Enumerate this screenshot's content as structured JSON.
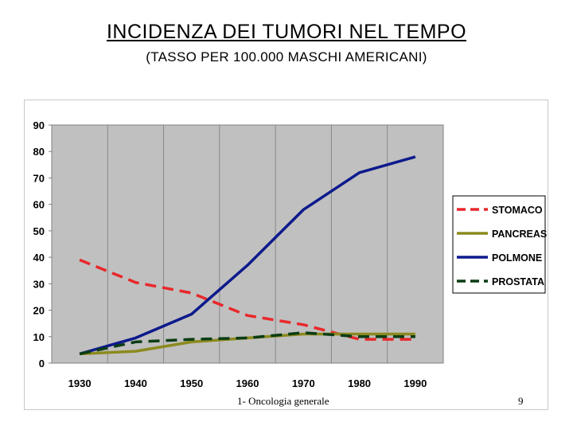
{
  "slide": {
    "title": "INCIDENZA DEI TUMORI NEL TEMPO",
    "subtitle": "(TASSO PER 100.000 MASCHI AMERICANI)",
    "footer_text": "1- Oncologia generale",
    "page_number": "9"
  },
  "chart_data": {
    "type": "line",
    "x": [
      "1930",
      "1940",
      "1950",
      "1960",
      "1970",
      "1980",
      "1990"
    ],
    "ylim": [
      0,
      90
    ],
    "yticks": [
      "0",
      "10",
      "20",
      "30",
      "40",
      "50",
      "60",
      "70",
      "80",
      "90"
    ],
    "grid": true,
    "legend_position": "right",
    "plot_background": "#c0c0c0",
    "series": [
      {
        "name": "STOMACO",
        "color": "#e8282b",
        "dash": "dashed",
        "values": [
          39,
          30.5,
          26.5,
          18,
          14.5,
          9,
          9
        ]
      },
      {
        "name": "PANCREAS",
        "color": "#8c8a1e",
        "dash": "solid",
        "values": [
          3.5,
          4.5,
          8,
          9.5,
          11,
          11,
          11
        ]
      },
      {
        "name": "POLMONE",
        "color": "#0d1a8c",
        "dash": "solid",
        "values": [
          3.5,
          9.5,
          18.5,
          37,
          58,
          72,
          78
        ]
      },
      {
        "name": "PROSTATA",
        "color": "#0b3d14",
        "dash": "dashed",
        "values": [
          3.5,
          8,
          9,
          9.5,
          11.5,
          10,
          10
        ]
      }
    ]
  }
}
